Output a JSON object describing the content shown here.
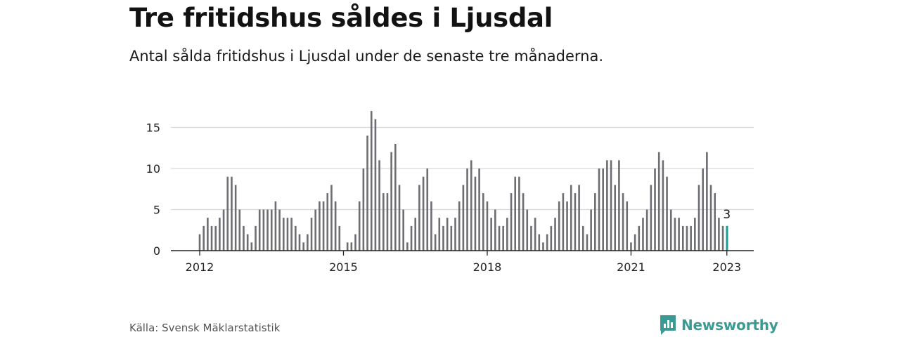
{
  "header": {
    "title": "Tre fritidshus såldes i Ljusdal",
    "subtitle": "Antal sålda fritidshus i Ljusdal under de senaste tre månaderna."
  },
  "footer": {
    "source": "Källa: Svensk Mäklarstatistik",
    "brand": "Newsworthy"
  },
  "colors": {
    "bar": "#6d6d72",
    "highlight": "#1a9c96",
    "grid": "#d6d6d6",
    "axis": "#222222",
    "brand": "#3a9a94"
  },
  "chart_data": {
    "type": "bar",
    "x_start": "2012-01",
    "frequency": "monthly",
    "values": [
      2,
      3,
      4,
      3,
      3,
      4,
      5,
      9,
      9,
      8,
      5,
      3,
      2,
      1,
      3,
      5,
      5,
      5,
      5,
      6,
      5,
      4,
      4,
      4,
      3,
      2,
      1,
      2,
      4,
      5,
      6,
      6,
      7,
      8,
      6,
      3,
      0,
      1,
      1,
      2,
      6,
      10,
      14,
      17,
      16,
      11,
      7,
      7,
      12,
      13,
      8,
      5,
      1,
      3,
      4,
      8,
      9,
      10,
      6,
      2,
      4,
      3,
      4,
      3,
      4,
      6,
      8,
      10,
      11,
      9,
      10,
      7,
      6,
      4,
      5,
      3,
      3,
      4,
      7,
      9,
      9,
      7,
      5,
      3,
      4,
      2,
      1,
      2,
      3,
      4,
      6,
      7,
      6,
      8,
      7,
      8,
      3,
      2,
      5,
      7,
      10,
      10,
      11,
      11,
      8,
      11,
      7,
      6,
      1,
      2,
      3,
      4,
      5,
      8,
      10,
      12,
      11,
      9,
      5,
      4,
      4,
      3,
      3,
      3,
      4,
      8,
      10,
      12,
      8,
      7,
      4,
      3,
      3
    ],
    "highlight_last": true,
    "last_value_label": "3",
    "y_ticks": [
      0,
      5,
      10,
      15
    ],
    "ylim": [
      0,
      18
    ],
    "x_ticks": [
      "2012",
      "2015",
      "2018",
      "2021",
      "2023"
    ],
    "grid": true,
    "legend": "none"
  }
}
